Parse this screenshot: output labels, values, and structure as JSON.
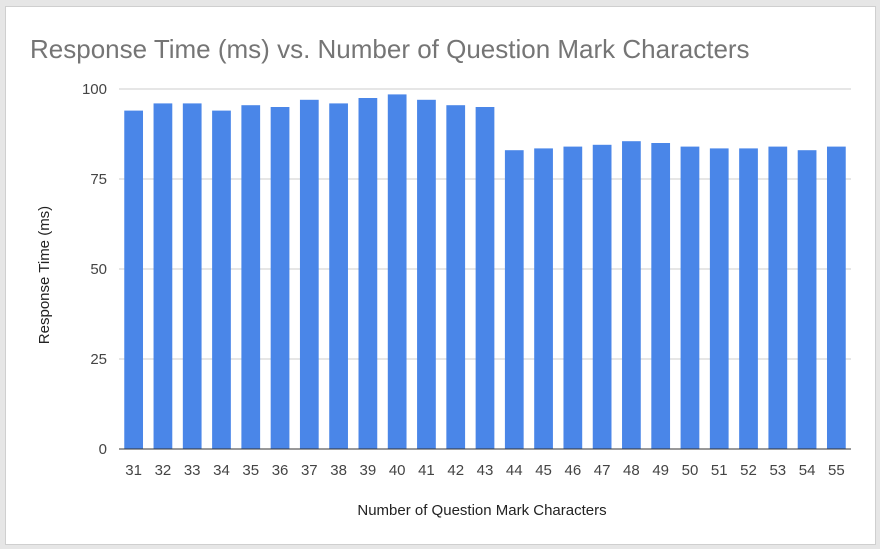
{
  "chart_data": {
    "type": "bar",
    "title": "Response Time (ms) vs. Number of Question Mark Characters",
    "xlabel": "Number of Question Mark Characters",
    "ylabel": "Response Time (ms)",
    "ylim": [
      0,
      100
    ],
    "yticks": [
      0,
      25,
      50,
      75,
      100
    ],
    "grid": true,
    "legend": "none",
    "bar_color": "#4a86e8",
    "gridline_color": "#cccccc",
    "axis_color": "#333333",
    "categories": [
      "31",
      "32",
      "33",
      "34",
      "35",
      "36",
      "37",
      "38",
      "39",
      "40",
      "41",
      "42",
      "43",
      "44",
      "45",
      "46",
      "47",
      "48",
      "49",
      "50",
      "51",
      "52",
      "53",
      "54",
      "55"
    ],
    "values": [
      94,
      96,
      96,
      94,
      95.5,
      95,
      97,
      96,
      97.5,
      98.5,
      97,
      95.5,
      95,
      83,
      83.5,
      84,
      84.5,
      85.5,
      85,
      84,
      83.5,
      83.5,
      84,
      83,
      84
    ]
  }
}
